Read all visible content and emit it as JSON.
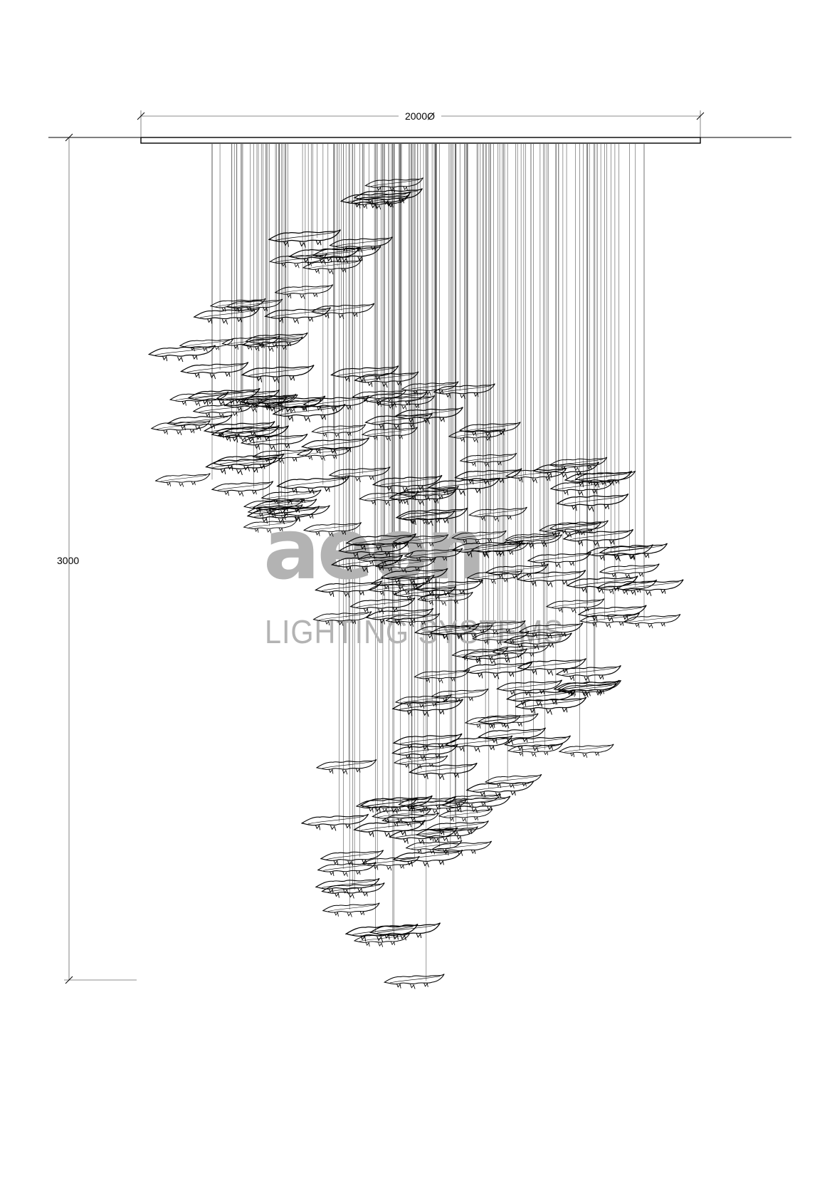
{
  "dimensions": {
    "width_label": "2000Ø",
    "height_label": "3000"
  },
  "watermark": {
    "logo_text": "aeon",
    "subtitle": "LIGHTING SYSTEMS",
    "color": "#b3b3b3"
  },
  "colors": {
    "line": "#000000",
    "wire": "#555555"
  }
}
